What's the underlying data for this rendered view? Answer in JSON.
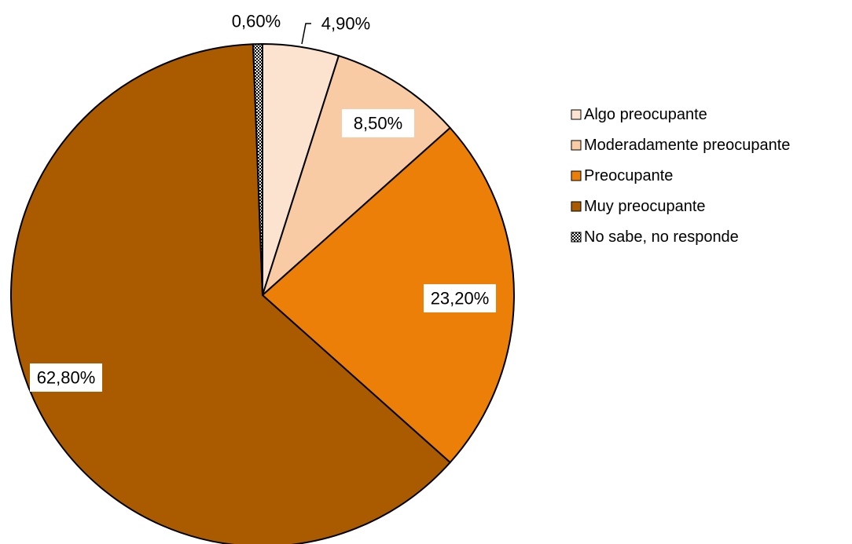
{
  "chart_data": {
    "type": "pie",
    "title": "",
    "legend_position": "right",
    "slices": [
      {
        "name": "Algo preocupante",
        "value": 4.9,
        "label": "4,90%",
        "color": "#FBE3CF"
      },
      {
        "name": "Moderadamente preocupante",
        "value": 8.5,
        "label": "8,50%",
        "color": "#F9CBA4"
      },
      {
        "name": "Preocupante",
        "value": 23.2,
        "label": "23,20%",
        "color": "#EB7F07"
      },
      {
        "name": "Muy preocupante",
        "value": 62.8,
        "label": "62,80%",
        "color": "#AA5B00"
      },
      {
        "name": "No sabe, no responde",
        "value": 0.6,
        "label": "0,60%",
        "color": "#FFFFFF",
        "pattern": "checker"
      }
    ]
  }
}
